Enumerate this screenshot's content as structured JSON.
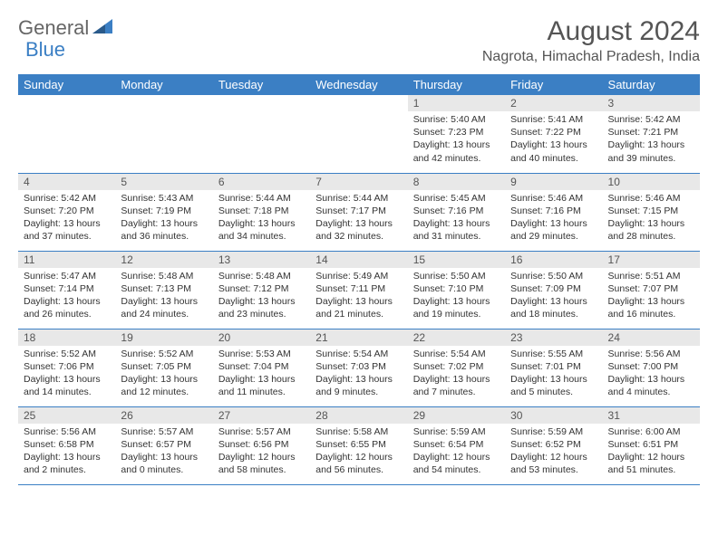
{
  "logo": {
    "general": "General",
    "blue": "Blue"
  },
  "title": "August 2024",
  "location": "Nagrota, Himachal Pradesh, India",
  "colors": {
    "header_bg": "#3b7fc4",
    "header_text": "#ffffff",
    "daynum_bg": "#e8e8e8",
    "row_border": "#3b7fc4",
    "logo_blue": "#3b7fc4",
    "logo_gray": "#666666",
    "body_bg": "#ffffff",
    "text": "#333333"
  },
  "day_headers": [
    "Sunday",
    "Monday",
    "Tuesday",
    "Wednesday",
    "Thursday",
    "Friday",
    "Saturday"
  ],
  "weeks": [
    [
      {
        "empty": true
      },
      {
        "empty": true
      },
      {
        "empty": true
      },
      {
        "empty": true
      },
      {
        "num": "1",
        "sunrise": "Sunrise: 5:40 AM",
        "sunset": "Sunset: 7:23 PM",
        "daylight1": "Daylight: 13 hours",
        "daylight2": "and 42 minutes."
      },
      {
        "num": "2",
        "sunrise": "Sunrise: 5:41 AM",
        "sunset": "Sunset: 7:22 PM",
        "daylight1": "Daylight: 13 hours",
        "daylight2": "and 40 minutes."
      },
      {
        "num": "3",
        "sunrise": "Sunrise: 5:42 AM",
        "sunset": "Sunset: 7:21 PM",
        "daylight1": "Daylight: 13 hours",
        "daylight2": "and 39 minutes."
      }
    ],
    [
      {
        "num": "4",
        "sunrise": "Sunrise: 5:42 AM",
        "sunset": "Sunset: 7:20 PM",
        "daylight1": "Daylight: 13 hours",
        "daylight2": "and 37 minutes."
      },
      {
        "num": "5",
        "sunrise": "Sunrise: 5:43 AM",
        "sunset": "Sunset: 7:19 PM",
        "daylight1": "Daylight: 13 hours",
        "daylight2": "and 36 minutes."
      },
      {
        "num": "6",
        "sunrise": "Sunrise: 5:44 AM",
        "sunset": "Sunset: 7:18 PM",
        "daylight1": "Daylight: 13 hours",
        "daylight2": "and 34 minutes."
      },
      {
        "num": "7",
        "sunrise": "Sunrise: 5:44 AM",
        "sunset": "Sunset: 7:17 PM",
        "daylight1": "Daylight: 13 hours",
        "daylight2": "and 32 minutes."
      },
      {
        "num": "8",
        "sunrise": "Sunrise: 5:45 AM",
        "sunset": "Sunset: 7:16 PM",
        "daylight1": "Daylight: 13 hours",
        "daylight2": "and 31 minutes."
      },
      {
        "num": "9",
        "sunrise": "Sunrise: 5:46 AM",
        "sunset": "Sunset: 7:16 PM",
        "daylight1": "Daylight: 13 hours",
        "daylight2": "and 29 minutes."
      },
      {
        "num": "10",
        "sunrise": "Sunrise: 5:46 AM",
        "sunset": "Sunset: 7:15 PM",
        "daylight1": "Daylight: 13 hours",
        "daylight2": "and 28 minutes."
      }
    ],
    [
      {
        "num": "11",
        "sunrise": "Sunrise: 5:47 AM",
        "sunset": "Sunset: 7:14 PM",
        "daylight1": "Daylight: 13 hours",
        "daylight2": "and 26 minutes."
      },
      {
        "num": "12",
        "sunrise": "Sunrise: 5:48 AM",
        "sunset": "Sunset: 7:13 PM",
        "daylight1": "Daylight: 13 hours",
        "daylight2": "and 24 minutes."
      },
      {
        "num": "13",
        "sunrise": "Sunrise: 5:48 AM",
        "sunset": "Sunset: 7:12 PM",
        "daylight1": "Daylight: 13 hours",
        "daylight2": "and 23 minutes."
      },
      {
        "num": "14",
        "sunrise": "Sunrise: 5:49 AM",
        "sunset": "Sunset: 7:11 PM",
        "daylight1": "Daylight: 13 hours",
        "daylight2": "and 21 minutes."
      },
      {
        "num": "15",
        "sunrise": "Sunrise: 5:50 AM",
        "sunset": "Sunset: 7:10 PM",
        "daylight1": "Daylight: 13 hours",
        "daylight2": "and 19 minutes."
      },
      {
        "num": "16",
        "sunrise": "Sunrise: 5:50 AM",
        "sunset": "Sunset: 7:09 PM",
        "daylight1": "Daylight: 13 hours",
        "daylight2": "and 18 minutes."
      },
      {
        "num": "17",
        "sunrise": "Sunrise: 5:51 AM",
        "sunset": "Sunset: 7:07 PM",
        "daylight1": "Daylight: 13 hours",
        "daylight2": "and 16 minutes."
      }
    ],
    [
      {
        "num": "18",
        "sunrise": "Sunrise: 5:52 AM",
        "sunset": "Sunset: 7:06 PM",
        "daylight1": "Daylight: 13 hours",
        "daylight2": "and 14 minutes."
      },
      {
        "num": "19",
        "sunrise": "Sunrise: 5:52 AM",
        "sunset": "Sunset: 7:05 PM",
        "daylight1": "Daylight: 13 hours",
        "daylight2": "and 12 minutes."
      },
      {
        "num": "20",
        "sunrise": "Sunrise: 5:53 AM",
        "sunset": "Sunset: 7:04 PM",
        "daylight1": "Daylight: 13 hours",
        "daylight2": "and 11 minutes."
      },
      {
        "num": "21",
        "sunrise": "Sunrise: 5:54 AM",
        "sunset": "Sunset: 7:03 PM",
        "daylight1": "Daylight: 13 hours",
        "daylight2": "and 9 minutes."
      },
      {
        "num": "22",
        "sunrise": "Sunrise: 5:54 AM",
        "sunset": "Sunset: 7:02 PM",
        "daylight1": "Daylight: 13 hours",
        "daylight2": "and 7 minutes."
      },
      {
        "num": "23",
        "sunrise": "Sunrise: 5:55 AM",
        "sunset": "Sunset: 7:01 PM",
        "daylight1": "Daylight: 13 hours",
        "daylight2": "and 5 minutes."
      },
      {
        "num": "24",
        "sunrise": "Sunrise: 5:56 AM",
        "sunset": "Sunset: 7:00 PM",
        "daylight1": "Daylight: 13 hours",
        "daylight2": "and 4 minutes."
      }
    ],
    [
      {
        "num": "25",
        "sunrise": "Sunrise: 5:56 AM",
        "sunset": "Sunset: 6:58 PM",
        "daylight1": "Daylight: 13 hours",
        "daylight2": "and 2 minutes."
      },
      {
        "num": "26",
        "sunrise": "Sunrise: 5:57 AM",
        "sunset": "Sunset: 6:57 PM",
        "daylight1": "Daylight: 13 hours",
        "daylight2": "and 0 minutes."
      },
      {
        "num": "27",
        "sunrise": "Sunrise: 5:57 AM",
        "sunset": "Sunset: 6:56 PM",
        "daylight1": "Daylight: 12 hours",
        "daylight2": "and 58 minutes."
      },
      {
        "num": "28",
        "sunrise": "Sunrise: 5:58 AM",
        "sunset": "Sunset: 6:55 PM",
        "daylight1": "Daylight: 12 hours",
        "daylight2": "and 56 minutes."
      },
      {
        "num": "29",
        "sunrise": "Sunrise: 5:59 AM",
        "sunset": "Sunset: 6:54 PM",
        "daylight1": "Daylight: 12 hours",
        "daylight2": "and 54 minutes."
      },
      {
        "num": "30",
        "sunrise": "Sunrise: 5:59 AM",
        "sunset": "Sunset: 6:52 PM",
        "daylight1": "Daylight: 12 hours",
        "daylight2": "and 53 minutes."
      },
      {
        "num": "31",
        "sunrise": "Sunrise: 6:00 AM",
        "sunset": "Sunset: 6:51 PM",
        "daylight1": "Daylight: 12 hours",
        "daylight2": "and 51 minutes."
      }
    ]
  ]
}
